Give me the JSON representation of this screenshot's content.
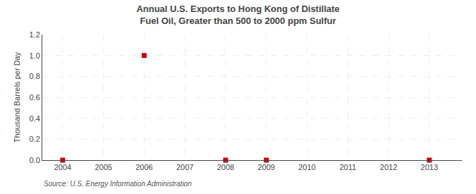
{
  "chart_data": {
    "type": "scatter",
    "title": "Annual U.S. Exports to Hong Kong of Distillate Fuel Oil, Greater than 500 to 2000 ppm Sulfur",
    "ylabel": "Thousand Barrels per Day",
    "annotations": [
      "Source: U.S. Energy Information Administration"
    ],
    "x": [
      2004,
      2006,
      2008,
      2009,
      2013
    ],
    "values": [
      0.0,
      1.0,
      0.0,
      0.0,
      0.0
    ],
    "color": "#cc0000",
    "marker": "square",
    "xlim": [
      2003.5,
      2013.8
    ],
    "xticks": [
      2004,
      2005,
      2006,
      2007,
      2008,
      2009,
      2010,
      2011,
      2012,
      2013
    ],
    "ylim": [
      0.0,
      1.2
    ],
    "yticks": [
      {
        "value": 0.0,
        "label": "0.0"
      },
      0.2,
      0.4,
      0.6,
      0.8,
      {
        "value": 1.0,
        "label": "1.0"
      },
      1.2
    ],
    "grid": true
  }
}
